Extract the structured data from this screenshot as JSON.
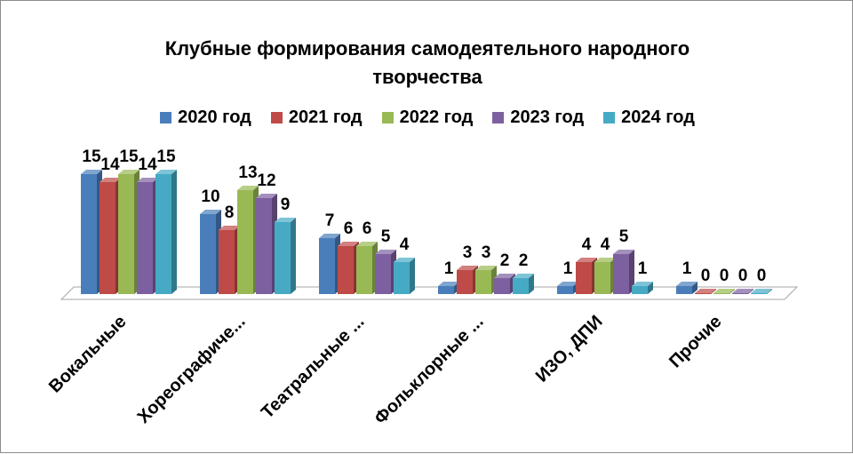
{
  "chart_data": {
    "type": "bar",
    "title": "Клубные формирования самодеятельного народного творчества",
    "title_lines": [
      "Клубные формирования самодеятельного народного",
      "творчества"
    ],
    "categories": [
      "Вокальные",
      "Хореографиче...",
      "Театральные ...",
      "Фольклорные ...",
      "ИЗО, ДПИ",
      "Прочие"
    ],
    "series": [
      {
        "name": "2020 год",
        "values": [
          15,
          10,
          7,
          1,
          1,
          1
        ],
        "color": "#4A7EBB"
      },
      {
        "name": "2021 год",
        "values": [
          14,
          8,
          6,
          3,
          4,
          0
        ],
        "color": "#BE4B48"
      },
      {
        "name": "2022 год",
        "values": [
          15,
          13,
          6,
          3,
          4,
          0
        ],
        "color": "#98B954"
      },
      {
        "name": "2023 год",
        "values": [
          14,
          12,
          5,
          2,
          5,
          0
        ],
        "color": "#7D60A0"
      },
      {
        "name": "2024 год",
        "values": [
          15,
          9,
          4,
          2,
          1,
          0
        ],
        "color": "#46AAC5"
      }
    ],
    "ylim": [
      0,
      15
    ],
    "legend_position": "top",
    "grid": false,
    "style": "3d-clustered-column"
  }
}
